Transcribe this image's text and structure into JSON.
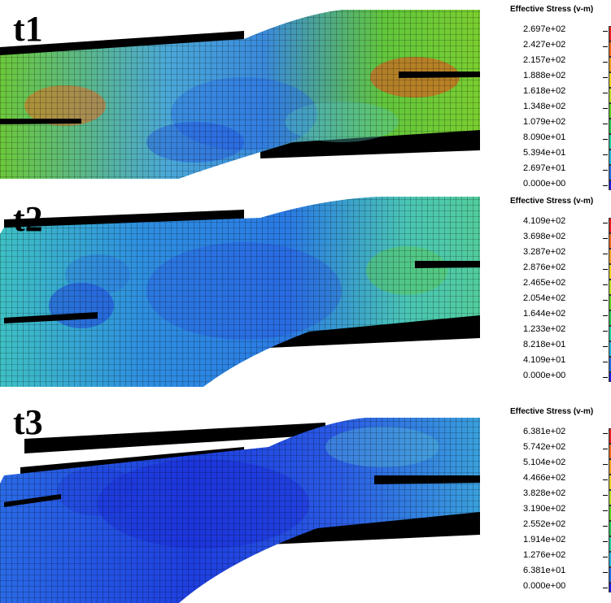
{
  "panels": [
    {
      "label": "t1",
      "legend": {
        "title": "Effective Stress (v-m)",
        "values": [
          "2.697e+02",
          "2.427e+02",
          "2.157e+02",
          "1.888e+02",
          "1.618e+02",
          "1.348e+02",
          "1.079e+02",
          "8.090e+01",
          "5.394e+01",
          "2.697e+01",
          "0.000e+00"
        ]
      },
      "stress_level": "mostly green / yellow with red-orange hot spots at both crack tips"
    },
    {
      "label": "t2",
      "legend": {
        "title": "Effective Stress (v-m)",
        "values": [
          "4.109e+02",
          "3.698e+02",
          "3.287e+02",
          "2.876e+02",
          "2.465e+02",
          "2.054e+02",
          "1.644e+02",
          "1.233e+02",
          "8.218e+01",
          "4.109e+01",
          "0.000e+00"
        ]
      },
      "stress_level": "mostly cyan / blue with green near crack tips"
    },
    {
      "label": "t3",
      "legend": {
        "title": "Effective Stress (v-m)",
        "values": [
          "6.381e+02",
          "5.742e+02",
          "5.104e+02",
          "4.466e+02",
          "3.828e+02",
          "3.190e+02",
          "2.552e+02",
          "1.914e+02",
          "1.276e+02",
          "6.381e+01",
          "0.000e+00"
        ]
      },
      "stress_level": "mostly blue with cyan regions"
    }
  ],
  "colors": {
    "scale": [
      "#e8201a",
      "#f06b18",
      "#f0a01c",
      "#e6d21c",
      "#b4e01e",
      "#5ad21e",
      "#28c850",
      "#1ed2a0",
      "#1eb4dc",
      "#2070e6",
      "#1a1ae6"
    ]
  }
}
